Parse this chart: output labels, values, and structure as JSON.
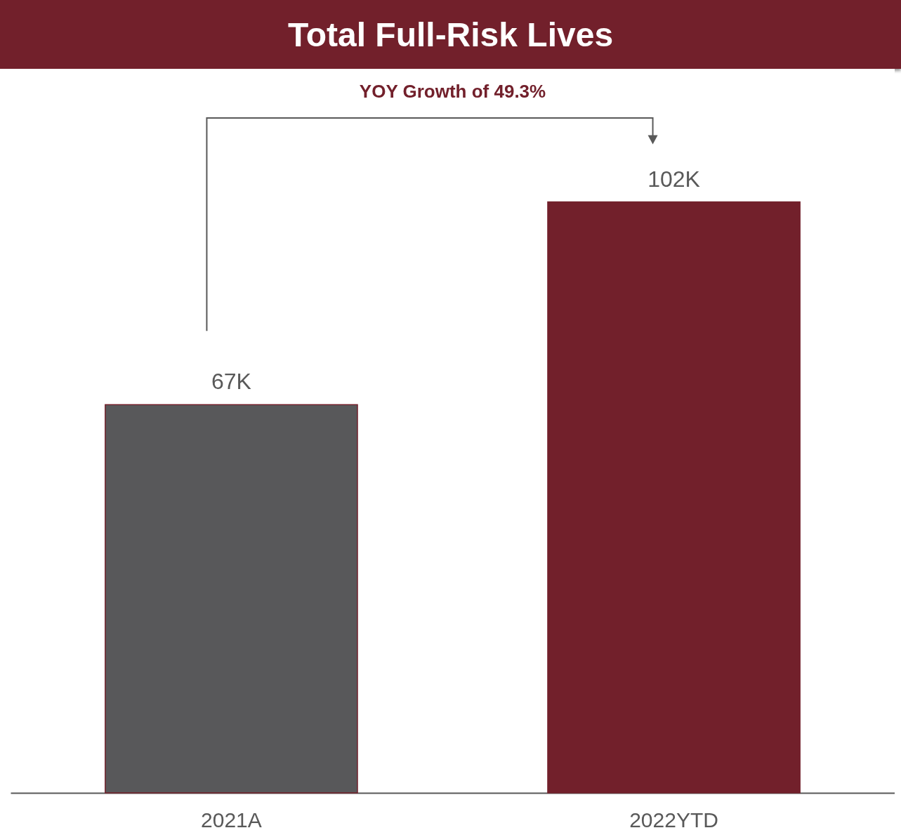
{
  "chart_data": {
    "type": "bar",
    "title": "Total Full-Risk Lives",
    "categories": [
      "2021A",
      "2022YTD"
    ],
    "values": [
      67,
      102
    ],
    "value_labels": [
      "67K",
      "102K"
    ],
    "colors": [
      "#58585a",
      "#72202b"
    ],
    "annotations": [
      "YOY Growth of 49.3%"
    ]
  }
}
